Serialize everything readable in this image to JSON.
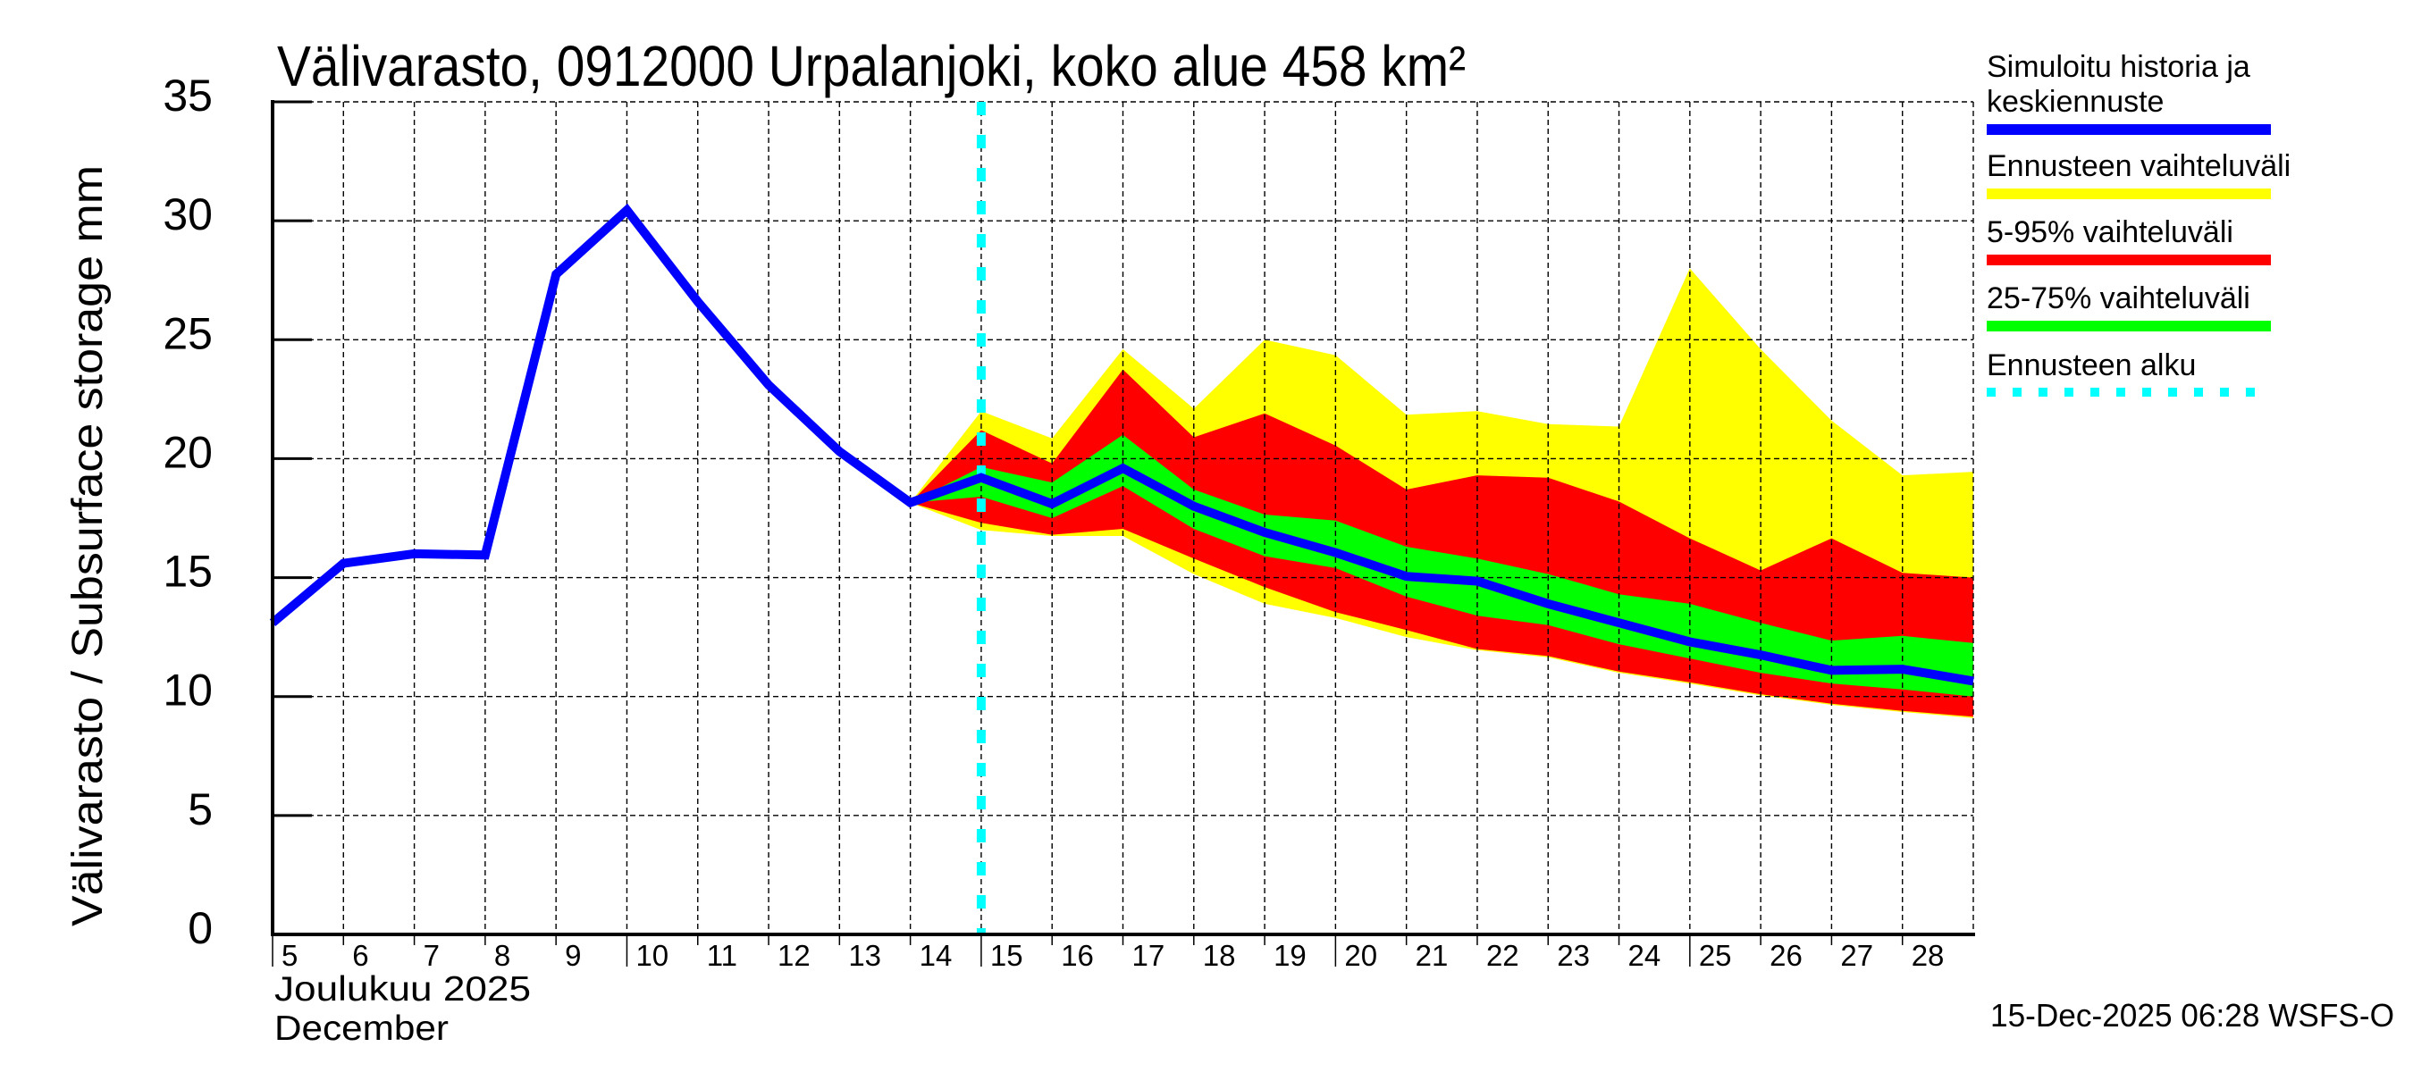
{
  "chart_data": {
    "type": "area",
    "title": "Välivarasto, 0912000 Urpalanjoki, koko alue 458 km²",
    "ylabel": "Välivarasto / Subsurface storage  mm",
    "xlabel_line1": "Joulukuu  2025",
    "xlabel_line2": "December",
    "ylim": [
      0,
      35
    ],
    "yticks": [
      "0",
      "5",
      "10",
      "15",
      "20",
      "25",
      "30",
      "35"
    ],
    "ytick_values": [
      0,
      5,
      10,
      15,
      20,
      25,
      30,
      35
    ],
    "xlim": [
      5,
      29
    ],
    "xtick_labels": [
      "5",
      "6",
      "7",
      "8",
      "9",
      "10",
      "11",
      "12",
      "13",
      "14",
      "15",
      "16",
      "17",
      "18",
      "19",
      "20",
      "21",
      "22",
      "23",
      "24",
      "25",
      "26",
      "27",
      "28"
    ],
    "xtick_values": [
      5,
      6,
      7,
      8,
      9,
      10,
      11,
      12,
      13,
      14,
      15,
      16,
      17,
      18,
      19,
      20,
      21,
      22,
      23,
      24,
      25,
      26,
      27,
      28
    ],
    "grid": true,
    "forecast_start_day": 15,
    "legend_position": "right",
    "series": [
      {
        "name": "Simuloitu historia ja keskiennuste",
        "kind": "line",
        "color": "#0000ff",
        "x": [
          5,
          6,
          7,
          8,
          9,
          10,
          11,
          12,
          13,
          14,
          15,
          16,
          17,
          18,
          19,
          20,
          21,
          22,
          23,
          24,
          25,
          26,
          27,
          28,
          29
        ],
        "values": [
          13.1,
          15.6,
          16.0,
          15.95,
          27.75,
          30.45,
          26.6,
          23.1,
          20.3,
          18.15,
          19.2,
          18.1,
          19.6,
          18.0,
          16.9,
          16.05,
          15.05,
          14.85,
          13.9,
          13.1,
          12.3,
          11.75,
          11.1,
          11.15,
          10.65
        ]
      },
      {
        "name": "Ennusteen vaihteluväli",
        "kind": "band",
        "color": "#ffff00",
        "x": [
          14,
          15,
          16,
          17,
          18,
          19,
          20,
          21,
          22,
          23,
          24,
          25,
          26,
          27,
          28,
          29
        ],
        "upper": [
          18.15,
          22.0,
          20.85,
          24.6,
          22.1,
          25.0,
          24.35,
          21.85,
          22.0,
          21.45,
          21.35,
          28.0,
          24.6,
          21.6,
          19.3,
          19.45
        ],
        "lower": [
          18.15,
          17.0,
          16.75,
          16.75,
          15.15,
          13.9,
          13.3,
          12.5,
          11.95,
          11.65,
          11.0,
          10.55,
          10.05,
          9.65,
          9.35,
          9.1
        ]
      },
      {
        "name": "5-95% vaihteluväli",
        "kind": "band",
        "color": "#ff0000",
        "x": [
          14,
          15,
          16,
          17,
          18,
          19,
          20,
          21,
          22,
          23,
          24,
          25,
          26,
          27,
          28,
          29
        ],
        "upper": [
          18.15,
          21.2,
          19.8,
          23.75,
          20.9,
          21.9,
          20.55,
          18.7,
          19.3,
          19.2,
          18.2,
          16.65,
          15.3,
          16.65,
          15.2,
          15.0
        ],
        "lower": [
          18.15,
          17.3,
          16.8,
          17.05,
          15.8,
          14.6,
          13.55,
          12.8,
          12.0,
          11.7,
          11.05,
          10.6,
          10.1,
          9.7,
          9.4,
          9.15
        ]
      },
      {
        "name": "25-75% vaihteluväli",
        "kind": "band",
        "color": "#00ff00",
        "x": [
          14,
          15,
          16,
          17,
          18,
          19,
          20,
          21,
          22,
          23,
          24,
          25,
          26,
          27,
          28,
          29
        ],
        "upper": [
          18.15,
          19.65,
          19.0,
          21.0,
          18.7,
          17.65,
          17.4,
          16.3,
          15.8,
          15.15,
          14.3,
          13.9,
          13.1,
          12.35,
          12.55,
          12.25
        ],
        "lower": [
          18.15,
          18.4,
          17.5,
          18.85,
          17.05,
          15.9,
          15.4,
          14.2,
          13.4,
          13.0,
          12.2,
          11.6,
          11.0,
          10.55,
          10.3,
          10.0
        ]
      },
      {
        "name": "Ennusteen alku",
        "kind": "vline",
        "color": "#00ffff",
        "x": 15
      }
    ],
    "legend": [
      {
        "label_lines": [
          "Simuloitu historia ja",
          "keskiennuste"
        ],
        "color": "#0000ff",
        "style": "solid"
      },
      {
        "label_lines": [
          "Ennusteen vaihteluväli"
        ],
        "color": "#ffff00",
        "style": "solid"
      },
      {
        "label_lines": [
          "5-95% vaihteluväli"
        ],
        "color": "#ff0000",
        "style": "solid"
      },
      {
        "label_lines": [
          "25-75% vaihteluväli"
        ],
        "color": "#00ff00",
        "style": "solid"
      },
      {
        "label_lines": [
          "Ennusteen alku"
        ],
        "color": "#00ffff",
        "style": "dashed"
      }
    ]
  },
  "footer": {
    "timestamp": "15-Dec-2025 06:28 WSFS-O"
  }
}
